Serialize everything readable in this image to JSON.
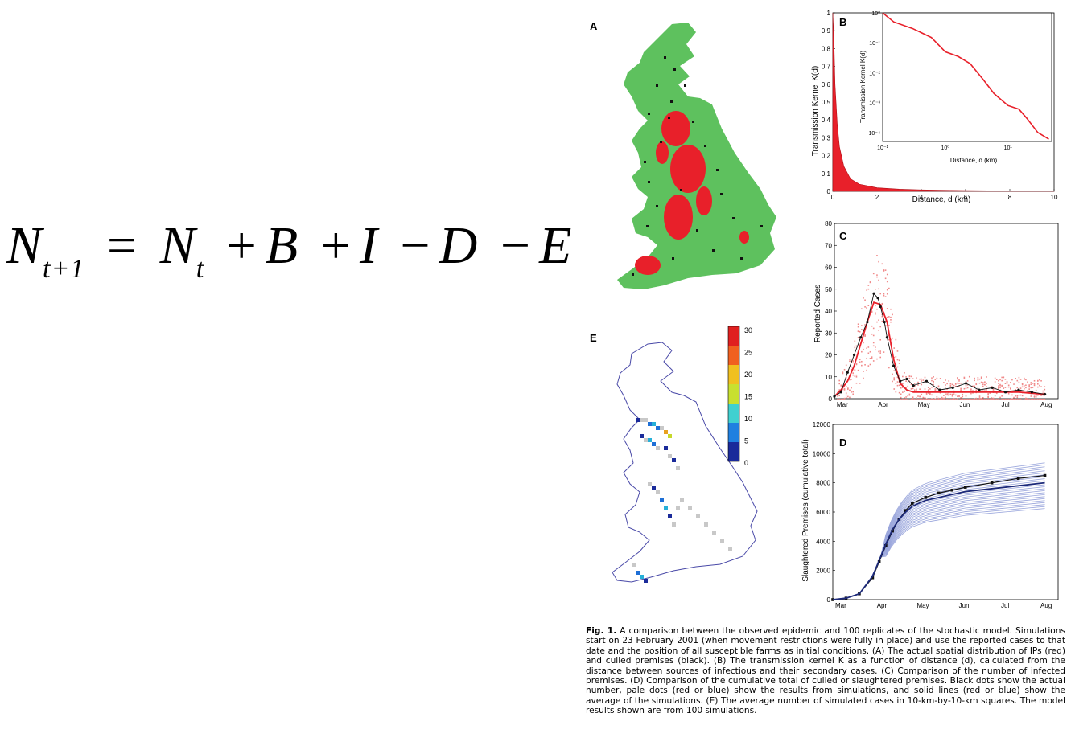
{
  "equation": {
    "lhs": "N",
    "lhs_sub": "t+1",
    "eq": "=",
    "nt": "N",
    "nt_sub": "t",
    "terms": [
      "+",
      "B",
      "+",
      "I",
      "−",
      "D",
      "−",
      "E"
    ]
  },
  "panels": {
    "a": {
      "letter": "A"
    },
    "b": {
      "letter": "B",
      "ylabel": "Transmission Kernel K(d)",
      "xlabel": "Distance, d (km)",
      "inset_ylabel": "Transmission Kernel K(d)",
      "inset_xlabel": "Distance, d (km)"
    },
    "c": {
      "letter": "C",
      "ylabel": "Reported Cases"
    },
    "d": {
      "letter": "D",
      "ylabel": "Slaughtered Premises (cumulative total)"
    },
    "e": {
      "letter": "E"
    }
  },
  "colors": {
    "map_land": "#5ec15e",
    "ip_red": "#e8202a",
    "culled_black": "#111111",
    "sim_blue": "#9aa6dc",
    "grey_cell": "#c8c8c8"
  },
  "caption": {
    "fig": "Fig. 1.",
    "text": " A comparison between the observed epidemic and 100 replicates of the stochastic model. Simulations start on 23 February 2001 (when movement restrictions were fully in place) and use the reported cases to that date and the position of all susceptible farms as initial conditions. (A) The actual spatial distribution of IPs (red) and culled premises (black). (B) The transmission kernel K as a function of distance (d), calculated from the distance between sources of infectious and their secondary cases. (C) Comparison of the number of infected premises. (D) Comparison of the cumulative total of culled or slaughtered premises. Black dots show the actual number, pale dots (red or blue) show the results from simulations, and solid lines (red or blue) show the average of the simulations. (E) The average number of simulated cases in 10-km-by-10-km squares. The model results shown are from 100 simulations."
  },
  "chart_data": [
    {
      "id": "B",
      "type": "area",
      "xlabel": "Distance, d (km)",
      "ylabel": "Transmission Kernel K(d)",
      "xlim": [
        0,
        10
      ],
      "ylim": [
        0,
        1
      ],
      "xticks": [
        "0",
        "2",
        "4",
        "6",
        "8",
        "10"
      ],
      "yticks": [
        "0",
        "0.1",
        "0.2",
        "0.3",
        "0.4",
        "0.5",
        "0.6",
        "0.7",
        "0.8",
        "0.9",
        "1"
      ],
      "x": [
        0,
        0.05,
        0.1,
        0.2,
        0.3,
        0.5,
        0.8,
        1.2,
        2,
        3,
        4,
        5,
        6,
        7,
        8,
        9,
        10
      ],
      "y": [
        1.0,
        0.85,
        0.6,
        0.38,
        0.25,
        0.14,
        0.07,
        0.04,
        0.02,
        0.012,
        0.008,
        0.006,
        0.004,
        0.003,
        0.002,
        0.001,
        0.0005
      ],
      "inset": {
        "type": "line",
        "scale": "log-log",
        "xlabel": "Distance, d (km)",
        "ylabel": "Transmission Kernel K(d)",
        "xticks": [
          "10⁻¹",
          "10⁰",
          "10¹"
        ],
        "yticks": [
          "10⁰",
          "10⁻¹",
          "10⁻²",
          "10⁻³",
          "10⁻⁴"
        ],
        "x": [
          0.1,
          0.15,
          0.3,
          0.6,
          1,
          1.6,
          2.5,
          4,
          6,
          10,
          15,
          20,
          30,
          45
        ],
        "y": [
          1.0,
          0.5,
          0.3,
          0.15,
          0.05,
          0.035,
          0.02,
          0.006,
          0.002,
          0.0008,
          0.0006,
          0.0003,
          0.0001,
          6e-05
        ]
      }
    },
    {
      "id": "C",
      "type": "line",
      "ylabel": "Reported Cases",
      "ylim": [
        0,
        80
      ],
      "yticks": [
        "0",
        "10",
        "20",
        "30",
        "40",
        "50",
        "60",
        "70",
        "80"
      ],
      "xticks": [
        "Mar",
        "Apr",
        "May",
        "Jun",
        "Jul",
        "Aug"
      ],
      "series": [
        {
          "role": "simulation mean",
          "color": "#e8202a",
          "x": [
            0,
            5,
            10,
            15,
            20,
            25,
            30,
            35,
            40,
            45,
            50,
            55,
            60,
            70,
            80,
            100,
            120,
            140,
            160
          ],
          "y": [
            1,
            4,
            8,
            15,
            25,
            35,
            44,
            43,
            35,
            18,
            7,
            4,
            3,
            3,
            3,
            3,
            3,
            3,
            2
          ]
        },
        {
          "role": "observed",
          "color": "#111111",
          "x": [
            0,
            5,
            10,
            15,
            20,
            25,
            30,
            33,
            35,
            38,
            40,
            45,
            50,
            55,
            60,
            70,
            80,
            90,
            100,
            110,
            120,
            130,
            140,
            150,
            160
          ],
          "y": [
            1,
            3,
            12,
            20,
            28,
            35,
            48,
            46,
            42,
            35,
            28,
            15,
            8,
            9,
            6,
            8,
            4,
            5,
            7,
            4,
            5,
            3,
            4,
            3,
            2
          ]
        }
      ]
    },
    {
      "id": "D",
      "type": "line",
      "ylabel": "Slaughtered Premises (cumulative total)",
      "ylim": [
        0,
        12000
      ],
      "yticks": [
        "0",
        "2000",
        "4000",
        "6000",
        "8000",
        "10000",
        "12000"
      ],
      "xticks": [
        "Mar",
        "Apr",
        "May",
        "Jun",
        "Jul",
        "Aug"
      ],
      "series": [
        {
          "role": "observed",
          "color": "#111111",
          "x": [
            0,
            10,
            20,
            30,
            35,
            40,
            45,
            50,
            55,
            60,
            70,
            80,
            90,
            100,
            120,
            140,
            160
          ],
          "y": [
            0,
            100,
            400,
            1500,
            2600,
            3700,
            4700,
            5500,
            6100,
            6600,
            7000,
            7300,
            7500,
            7700,
            8000,
            8300,
            8500
          ]
        },
        {
          "role": "simulation mean",
          "color": "#1d2a7a",
          "x": [
            0,
            10,
            20,
            30,
            35,
            40,
            45,
            50,
            55,
            60,
            70,
            80,
            90,
            100,
            120,
            140,
            160
          ],
          "y": [
            0,
            100,
            400,
            1600,
            2700,
            3800,
            4800,
            5500,
            6000,
            6400,
            6800,
            7000,
            7200,
            7400,
            7600,
            7800,
            8000
          ]
        }
      ]
    },
    {
      "id": "E",
      "type": "heatmap",
      "colorbar_ticks": [
        "30",
        "25",
        "20",
        "15",
        "10",
        "5",
        "0"
      ],
      "colorbar_range": [
        0,
        30
      ]
    }
  ]
}
